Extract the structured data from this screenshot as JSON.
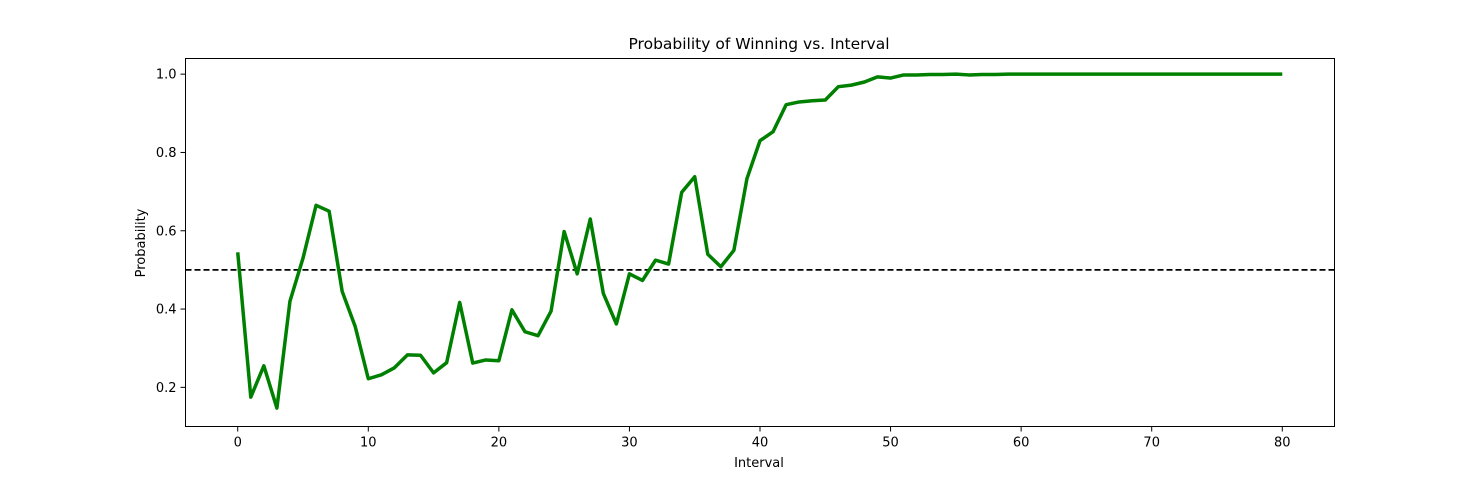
{
  "chart_data": {
    "type": "line",
    "title": "Probability of Winning vs. Interval",
    "xlabel": "Interval",
    "ylabel": "Probability",
    "xlim": [
      -4,
      84
    ],
    "ylim": [
      0.1,
      1.04
    ],
    "xticks": [
      0,
      10,
      20,
      30,
      40,
      50,
      60,
      70,
      80
    ],
    "xtick_labels": [
      "0",
      "10",
      "20",
      "30",
      "40",
      "50",
      "60",
      "70",
      "80"
    ],
    "yticks": [
      0.2,
      0.4,
      0.6,
      0.8,
      1.0
    ],
    "ytick_labels": [
      "0.2",
      "0.4",
      "0.6",
      "0.8",
      "1.0"
    ],
    "grid": false,
    "reference_line": {
      "y": 0.5,
      "style": "dashed",
      "color": "#000000"
    },
    "series": [
      {
        "color": "#008000",
        "x": [
          0,
          1,
          2,
          3,
          4,
          5,
          6,
          7,
          8,
          9,
          10,
          11,
          12,
          13,
          14,
          15,
          16,
          17,
          18,
          19,
          20,
          21,
          22,
          23,
          24,
          25,
          26,
          27,
          28,
          29,
          30,
          31,
          32,
          33,
          34,
          35,
          36,
          37,
          38,
          39,
          40,
          41,
          42,
          43,
          44,
          45,
          46,
          47,
          48,
          49,
          50,
          51,
          52,
          53,
          54,
          55,
          56,
          57,
          58,
          59,
          60,
          61,
          62,
          63,
          64,
          65,
          66,
          67,
          68,
          69,
          70,
          71,
          72,
          73,
          74,
          75,
          76,
          77,
          78,
          79,
          80
        ],
        "y": [
          0.545,
          0.175,
          0.255,
          0.147,
          0.42,
          0.53,
          0.665,
          0.65,
          0.445,
          0.355,
          0.222,
          0.232,
          0.25,
          0.283,
          0.282,
          0.237,
          0.263,
          0.417,
          0.262,
          0.27,
          0.268,
          0.398,
          0.342,
          0.332,
          0.395,
          0.598,
          0.49,
          0.63,
          0.44,
          0.362,
          0.49,
          0.473,
          0.525,
          0.515,
          0.698,
          0.738,
          0.54,
          0.508,
          0.55,
          0.733,
          0.83,
          0.853,
          0.922,
          0.929,
          0.932,
          0.934,
          0.968,
          0.972,
          0.98,
          0.993,
          0.99,
          0.998,
          0.998,
          0.999,
          0.999,
          1.0,
          0.998,
          0.999,
          0.999,
          1.0,
          1.0,
          1.0,
          1.0,
          1.0,
          1.0,
          1.0,
          1.0,
          1.0,
          1.0,
          1.0,
          1.0,
          1.0,
          1.0,
          1.0,
          1.0,
          1.0,
          1.0,
          1.0,
          1.0,
          1.0,
          1.0
        ]
      }
    ]
  }
}
